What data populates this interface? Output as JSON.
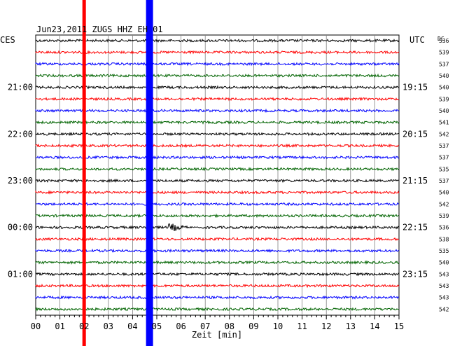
{
  "chart_data": {
    "type": "line",
    "title": "Jun23,2011   ZUGS HHZ EH 01",
    "left_label": "CES",
    "right_label": "UTC",
    "dc_label": "DC",
    "xlabel": "Zeit [min]",
    "x_ticks": [
      "00",
      "01",
      "02",
      "03",
      "04",
      "05",
      "06",
      "07",
      "08",
      "09",
      "10",
      "11",
      "12",
      "13",
      "14",
      "15"
    ],
    "xlim": [
      0,
      15
    ],
    "trace_colors": [
      "#000000",
      "#ff0000",
      "#0000ff",
      "#006400"
    ],
    "rows": [
      {
        "local": "",
        "utc": "",
        "dc": "536"
      },
      {
        "local": "",
        "utc": "",
        "dc": "539"
      },
      {
        "local": "",
        "utc": "",
        "dc": "537"
      },
      {
        "local": "",
        "utc": "",
        "dc": "540"
      },
      {
        "local": "21:00",
        "utc": "19:15",
        "dc": "540"
      },
      {
        "local": "",
        "utc": "",
        "dc": "539"
      },
      {
        "local": "",
        "utc": "",
        "dc": "540"
      },
      {
        "local": "",
        "utc": "",
        "dc": "541"
      },
      {
        "local": "22:00",
        "utc": "20:15",
        "dc": "542"
      },
      {
        "local": "",
        "utc": "",
        "dc": "537"
      },
      {
        "local": "",
        "utc": "",
        "dc": "537"
      },
      {
        "local": "",
        "utc": "",
        "dc": "535"
      },
      {
        "local": "23:00",
        "utc": "21:15",
        "dc": "537"
      },
      {
        "local": "",
        "utc": "",
        "dc": "540"
      },
      {
        "local": "",
        "utc": "",
        "dc": "542"
      },
      {
        "local": "",
        "utc": "",
        "dc": "539"
      },
      {
        "local": "00:00",
        "utc": "22:15",
        "dc": "536"
      },
      {
        "local": "",
        "utc": "",
        "dc": "538"
      },
      {
        "local": "",
        "utc": "",
        "dc": "535"
      },
      {
        "local": "",
        "utc": "",
        "dc": "540"
      },
      {
        "local": "01:00",
        "utc": "23:15",
        "dc": "543"
      },
      {
        "local": "",
        "utc": "",
        "dc": "543"
      },
      {
        "local": "",
        "utc": "",
        "dc": "543"
      },
      {
        "local": "",
        "utc": "",
        "dc": "542"
      }
    ],
    "markers": [
      {
        "color": "#ff0000",
        "minute": 2.0
      },
      {
        "color": "#0000ff",
        "minute": 4.7
      }
    ],
    "event": {
      "row": 16,
      "minute": 5.7
    }
  }
}
